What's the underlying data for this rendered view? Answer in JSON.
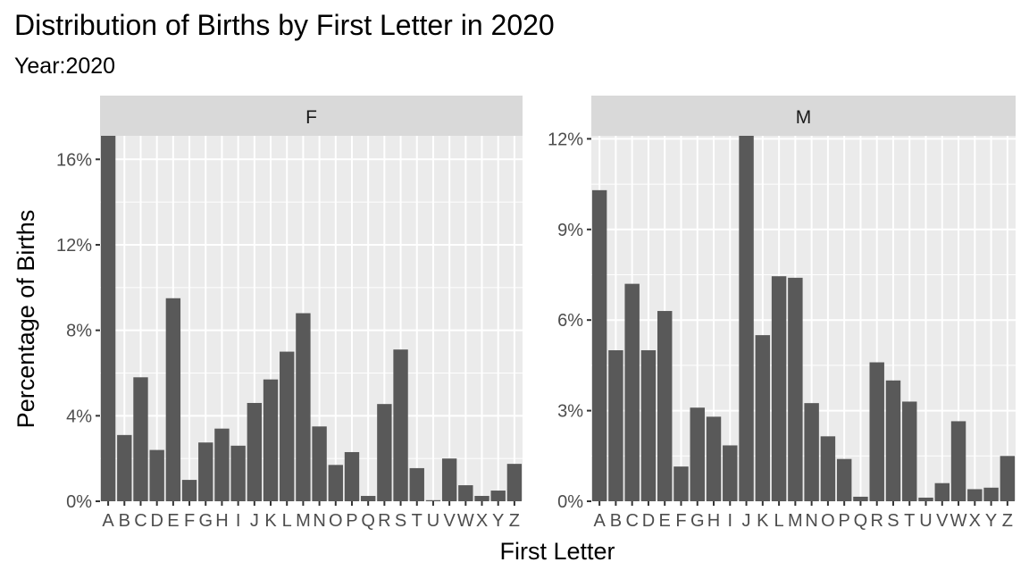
{
  "chart_data": {
    "type": "bar",
    "title": "Distribution of Births by First Letter in 2020",
    "subtitle": "Year:2020",
    "xlabel": "First Letter",
    "ylabel": "Percentage of Births",
    "categories": [
      "A",
      "B",
      "C",
      "D",
      "E",
      "F",
      "G",
      "H",
      "I",
      "J",
      "K",
      "L",
      "M",
      "N",
      "O",
      "P",
      "Q",
      "R",
      "S",
      "T",
      "U",
      "V",
      "W",
      "X",
      "Y",
      "Z"
    ],
    "facets": [
      {
        "name": "F",
        "ylim": [
          0,
          17.1
        ],
        "yticks": [
          0,
          4,
          8,
          12,
          16
        ],
        "ytick_labels": [
          "0%",
          "4%",
          "8%",
          "12%",
          "16%"
        ],
        "values": [
          17.1,
          3.1,
          5.8,
          2.4,
          9.5,
          1.0,
          2.75,
          3.4,
          2.6,
          4.6,
          5.7,
          7.0,
          8.8,
          3.5,
          1.7,
          2.3,
          0.25,
          4.55,
          7.1,
          1.55,
          0.05,
          2.0,
          0.75,
          0.25,
          0.5,
          1.75
        ]
      },
      {
        "name": "M",
        "ylim": [
          0,
          12.1
        ],
        "yticks": [
          0,
          3,
          6,
          9,
          12
        ],
        "ytick_labels": [
          "0%",
          "3%",
          "6%",
          "9%",
          "12%"
        ],
        "values": [
          10.3,
          5.0,
          7.2,
          5.0,
          6.3,
          1.15,
          3.1,
          2.8,
          1.85,
          12.1,
          5.5,
          7.45,
          7.4,
          3.25,
          2.15,
          1.4,
          0.15,
          4.6,
          4.0,
          3.3,
          0.12,
          0.6,
          2.65,
          0.4,
          0.45,
          1.5
        ]
      }
    ],
    "grid": true,
    "legend": "none",
    "colors": {
      "bar": "#595959",
      "panel_bg": "#ebebeb",
      "strip_bg": "#d9d9d9",
      "grid": "#ffffff",
      "axis_text": "#4d4d4d"
    }
  }
}
